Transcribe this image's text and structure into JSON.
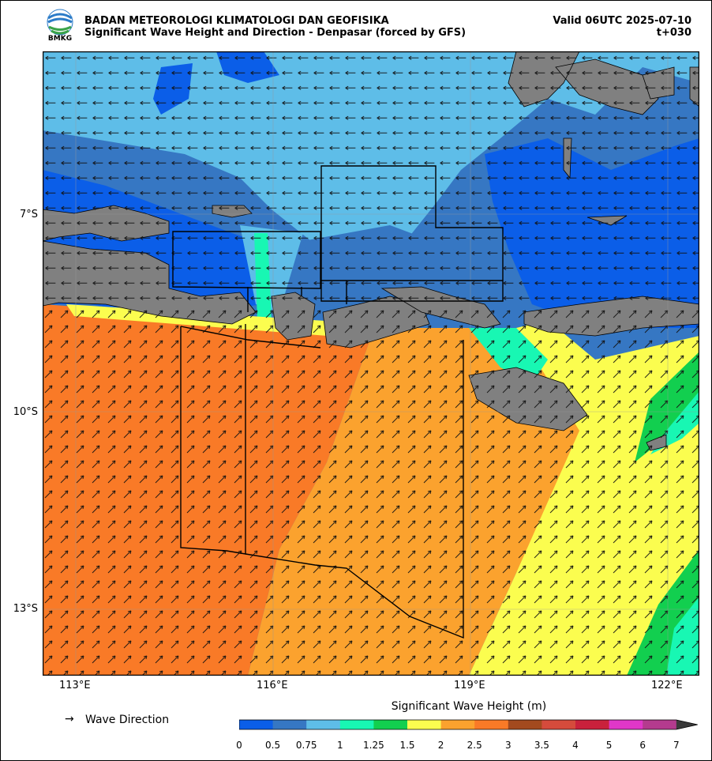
{
  "header": {
    "logo_text": "BMKG",
    "org": "BADAN METEOROLOGI KLIMATOLOGI DAN GEOFISIKA",
    "subtitle": "Significant Wave Height and Direction - Denpasar (forced by GFS)",
    "valid": "Valid 06UTC 2025-07-10",
    "lead": "t+030"
  },
  "axes": {
    "x_ticks": [
      "113°E",
      "116°E",
      "119°E",
      "122°E"
    ],
    "y_ticks": [
      "7°S",
      "10°S",
      "13°S"
    ]
  },
  "legend": {
    "arrow_symbol": "→",
    "direction_label": "Wave Direction",
    "colorbar_title": "Significant Wave Height (m)",
    "bounds": [
      "0",
      "0.5",
      "0.75",
      "1",
      "1.25",
      "1.5",
      "2",
      "2.5",
      "3",
      "3.5",
      "4",
      "5",
      "6",
      "7"
    ],
    "colors": [
      "#0b5ee8",
      "#3677c3",
      "#5ebde8",
      "#18f7b3",
      "#12cf4f",
      "#fbfd4f",
      "#fba22e",
      "#f97a27",
      "#a34a1e",
      "#d54b3c",
      "#c9213c",
      "#e037c8",
      "#b43b8e"
    ],
    "overflow_color": "#3a3a3a"
  },
  "map_colors": {
    "land": "#808080",
    "sea_deep_blue": "#0b5ee8",
    "sea_mid_blue": "#3677c3",
    "sea_light_blue": "#5ebde8",
    "aqua": "#18f7b3",
    "green": "#12cf4f",
    "yellow": "#fbfd4f",
    "light_orange": "#fba22e",
    "orange": "#f97a27"
  }
}
